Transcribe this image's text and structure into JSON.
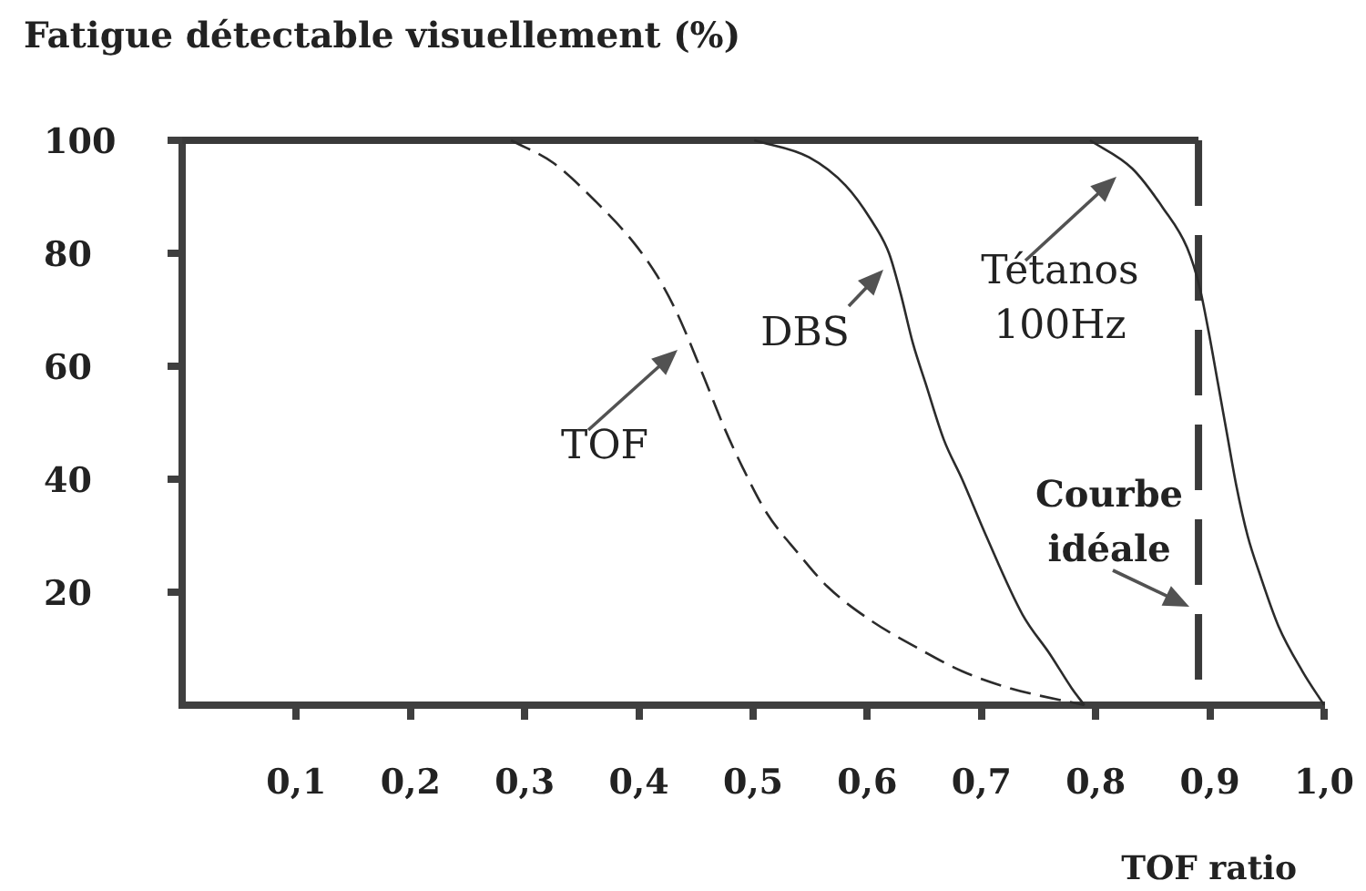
{
  "chart_data": {
    "type": "line",
    "ylabel": "Fatigue détectable visuellement (%)",
    "xlabel": "TOF ratio",
    "xlim": [
      0,
      1
    ],
    "ylim": [
      0,
      100
    ],
    "xticks": [
      {
        "value": 0.1,
        "label": "0,1"
      },
      {
        "value": 0.2,
        "label": "0,2"
      },
      {
        "value": 0.3,
        "label": "0,3"
      },
      {
        "value": 0.4,
        "label": "0,4"
      },
      {
        "value": 0.5,
        "label": "0,5"
      },
      {
        "value": 0.6,
        "label": "0,6"
      },
      {
        "value": 0.7,
        "label": "0,7"
      },
      {
        "value": 0.8,
        "label": "0,8"
      },
      {
        "value": 0.9,
        "label": "0,9"
      },
      {
        "value": 1,
        "label": "1,0"
      }
    ],
    "yticks": [
      20,
      40,
      60,
      80,
      100
    ],
    "marker": "none",
    "series": [
      {
        "name": "TOF",
        "color": "#2b2b2b",
        "line_style": "dashed",
        "x": [
          0.288,
          0.325,
          0.363,
          0.395,
          0.416,
          0.432,
          0.443,
          0.459,
          0.475,
          0.491,
          0.512,
          0.539,
          0.565,
          0.603,
          0.645,
          0.683,
          0.725,
          0.79
        ],
        "values": [
          100,
          96,
          89,
          82,
          76,
          70,
          65,
          57,
          49,
          42,
          34,
          27,
          21,
          15,
          10,
          6,
          3,
          0
        ]
      },
      {
        "name": "DBS",
        "color": "#2b2b2b",
        "line_style": "solid",
        "x": [
          0.501,
          0.549,
          0.581,
          0.603,
          0.619,
          0.629,
          0.64,
          0.651,
          0.667,
          0.683,
          0.704,
          0.736,
          0.76,
          0.779,
          0.79
        ],
        "values": [
          100,
          97,
          92,
          86,
          80,
          73,
          64,
          57,
          47,
          40,
          30,
          16,
          9,
          3,
          0
        ]
      },
      {
        "name": "Tétanos 100Hz",
        "color": "#2b2b2b",
        "line_style": "solid",
        "x": [
          0.795,
          0.832,
          0.859,
          0.88,
          0.891,
          0.899,
          0.907,
          0.915,
          0.923,
          0.933,
          0.944,
          0.96,
          0.981,
          1
        ],
        "values": [
          100,
          95,
          88,
          81,
          74,
          66,
          57,
          48,
          39,
          30,
          23,
          14,
          6,
          0
        ]
      },
      {
        "color": "#3a3a3a",
        "line_style": "solid",
        "x": [
          0,
          0.89
        ],
        "values": [
          100,
          100
        ]
      },
      {
        "name": "Courbe idéale",
        "color": "#3a3a3a",
        "line_style": "dashed",
        "x": [
          0.89,
          0.89
        ],
        "values": [
          100,
          0
        ]
      }
    ]
  }
}
